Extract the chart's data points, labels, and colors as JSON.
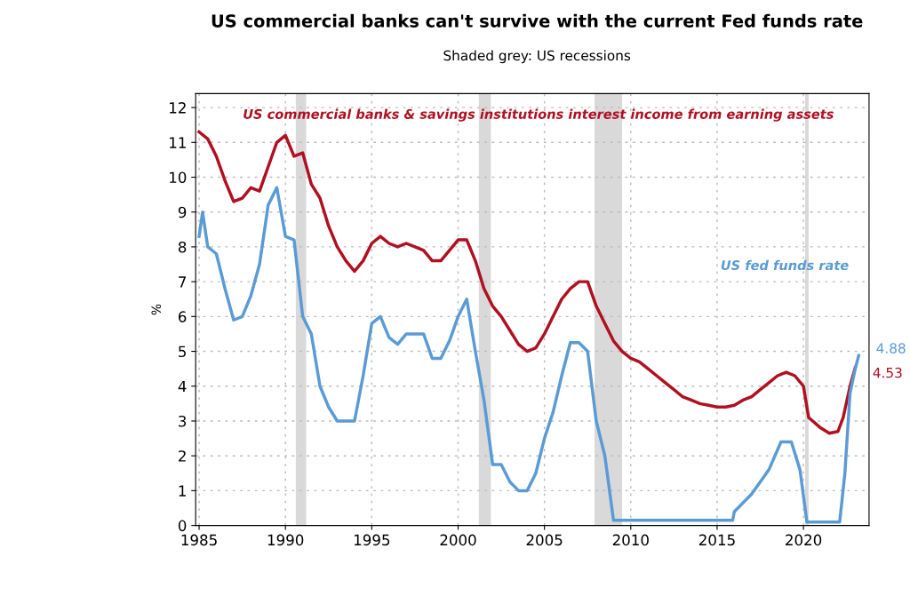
{
  "chart_data": {
    "type": "line",
    "title": "US commercial banks can't survive with the current Fed funds rate",
    "subtitle": "Shaded grey: US recessions",
    "ylabel": "%",
    "xlim": [
      1984.8,
      2023.8
    ],
    "xticks": [
      1985,
      1990,
      1995,
      2000,
      2005,
      2010,
      2015,
      2020
    ],
    "ylim": [
      0,
      12.4
    ],
    "yticks": [
      0,
      1,
      2,
      3,
      4,
      5,
      6,
      7,
      8,
      9,
      10,
      11,
      12
    ],
    "grid": true,
    "line_style": "solid",
    "series": [
      {
        "name": "US commercial banks & savings institutions interest income from earning assets",
        "color": "#b01020",
        "x": [
          1985.0,
          1985.5,
          1986,
          1986.5,
          1987,
          1987.5,
          1988,
          1988.5,
          1989,
          1989.5,
          1990,
          1990.5,
          1991,
          1991.5,
          1992,
          1992.5,
          1993,
          1993.5,
          1994,
          1994.5,
          1995,
          1995.5,
          1996,
          1996.5,
          1997,
          1997.5,
          1998,
          1998.5,
          1999,
          1999.5,
          2000,
          2000.5,
          2001,
          2001.5,
          2002,
          2002.5,
          2003,
          2003.5,
          2004,
          2004.5,
          2005,
          2005.5,
          2006,
          2006.5,
          2007,
          2007.5,
          2008,
          2008.5,
          2009,
          2009.5,
          2010,
          2010.5,
          2011,
          2011.5,
          2012,
          2012.5,
          2013,
          2013.5,
          2014,
          2014.5,
          2015,
          2015.5,
          2016,
          2016.5,
          2017,
          2017.5,
          2018,
          2018.5,
          2019,
          2019.5,
          2020,
          2020.3,
          2021,
          2021.5,
          2022,
          2022.3,
          2022.7,
          2023
        ],
        "values": [
          11.3,
          11.1,
          10.6,
          9.9,
          9.3,
          9.4,
          9.7,
          9.6,
          10.3,
          11.0,
          11.2,
          10.6,
          10.7,
          9.8,
          9.4,
          8.6,
          8.0,
          7.6,
          7.3,
          7.6,
          8.1,
          8.3,
          8.1,
          8.0,
          8.1,
          8.0,
          7.9,
          7.6,
          7.6,
          7.9,
          8.2,
          8.2,
          7.6,
          6.8,
          6.3,
          6.0,
          5.6,
          5.2,
          5.0,
          5.1,
          5.5,
          6.0,
          6.5,
          6.8,
          7.0,
          7.0,
          6.3,
          5.8,
          5.3,
          5.0,
          4.8,
          4.7,
          4.5,
          4.3,
          4.1,
          3.9,
          3.7,
          3.6,
          3.5,
          3.45,
          3.4,
          3.4,
          3.45,
          3.6,
          3.7,
          3.9,
          4.1,
          4.3,
          4.4,
          4.3,
          4.0,
          3.1,
          2.8,
          2.65,
          2.7,
          3.1,
          4.0,
          4.53
        ]
      },
      {
        "name": "US fed funds rate",
        "color": "#5b9bd5",
        "x": [
          1985.0,
          1985.2,
          1985.5,
          1986,
          1986.5,
          1987,
          1987.5,
          1988,
          1988.5,
          1989,
          1989.5,
          1990,
          1990.5,
          1991,
          1991.5,
          1992,
          1992.5,
          1993,
          1993.5,
          1994,
          1994.5,
          1995,
          1995.5,
          1996,
          1996.5,
          1997,
          1997.5,
          1998,
          1998.5,
          1999,
          1999.5,
          2000,
          2000.5,
          2001,
          2001.5,
          2002,
          2002.5,
          2003,
          2003.5,
          2004,
          2004.5,
          2005,
          2005.5,
          2006,
          2006.5,
          2007,
          2007.5,
          2008,
          2008.5,
          2009,
          2015.9,
          2016,
          2017,
          2018,
          2018.7,
          2019.3,
          2019.8,
          2020.2,
          2022.1,
          2022.4,
          2022.7,
          2023,
          2023.2
        ],
        "values": [
          8.3,
          9.0,
          8.0,
          7.8,
          6.8,
          5.9,
          6.0,
          6.6,
          7.5,
          9.2,
          9.7,
          8.3,
          8.2,
          6.0,
          5.5,
          4.0,
          3.4,
          3.0,
          3.0,
          3.0,
          4.3,
          5.8,
          6.0,
          5.4,
          5.2,
          5.5,
          5.5,
          5.5,
          4.8,
          4.8,
          5.3,
          6.0,
          6.5,
          5.0,
          3.6,
          1.75,
          1.75,
          1.25,
          1.0,
          1.0,
          1.5,
          2.5,
          3.25,
          4.3,
          5.25,
          5.25,
          5.0,
          3.0,
          2.0,
          0.15,
          0.15,
          0.4,
          0.9,
          1.6,
          2.4,
          2.4,
          1.6,
          0.1,
          0.1,
          1.5,
          3.8,
          4.5,
          4.88
        ]
      }
    ],
    "bands": [
      {
        "axis": "x",
        "from": 1990.6,
        "to": 1991.2,
        "color": "#d9d9d9"
      },
      {
        "axis": "x",
        "from": 2001.2,
        "to": 2001.9,
        "color": "#d9d9d9"
      },
      {
        "axis": "x",
        "from": 2007.9,
        "to": 2009.5,
        "color": "#d9d9d9"
      },
      {
        "axis": "x",
        "from": 2020.1,
        "to": 2020.3,
        "color": "#d9d9d9"
      }
    ],
    "annotations": [
      {
        "text": "4.88",
        "x": 2023.2,
        "y": 4.88
      },
      {
        "text": "4.53",
        "x": 2023,
        "y": 4.53
      }
    ]
  }
}
